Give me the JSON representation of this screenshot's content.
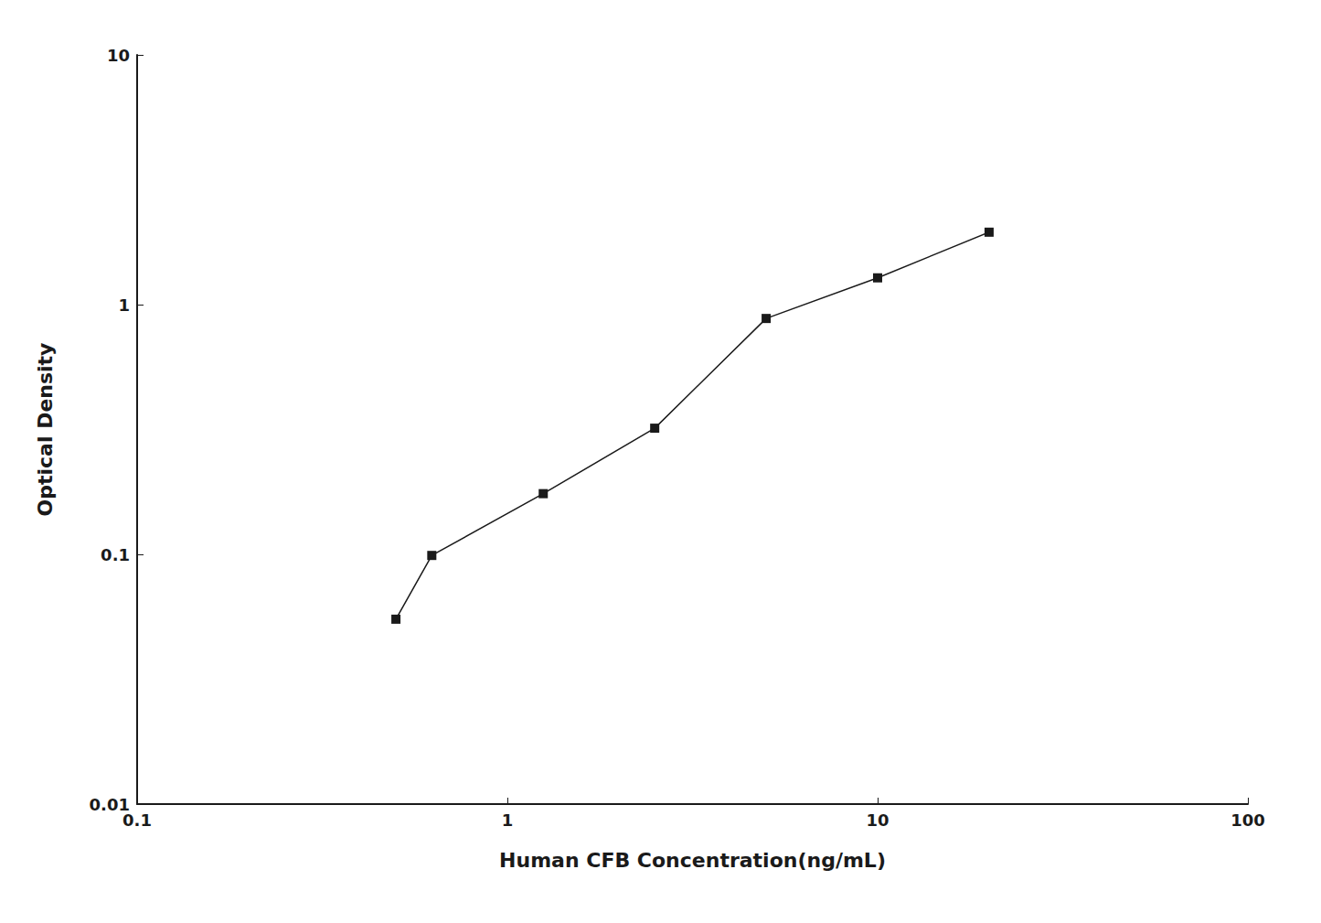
{
  "chart_data": {
    "type": "line",
    "x": [
      0.5,
      0.625,
      1.25,
      2.5,
      5.0,
      10.0,
      20.0
    ],
    "values": [
      0.055,
      0.099,
      0.175,
      0.32,
      0.88,
      1.28,
      1.95
    ],
    "xlabel": "Human CFB Concentration(ng/mL)",
    "ylabel": "Optical Density",
    "xlim": [
      0.1,
      100
    ],
    "ylim": [
      0.01,
      10
    ],
    "xticks": [
      0.1,
      1,
      10,
      100
    ],
    "yticks": [
      0.01,
      0.1,
      1,
      10
    ],
    "log": true,
    "grid": false,
    "color": "#1a1a1a",
    "marker": "square"
  }
}
